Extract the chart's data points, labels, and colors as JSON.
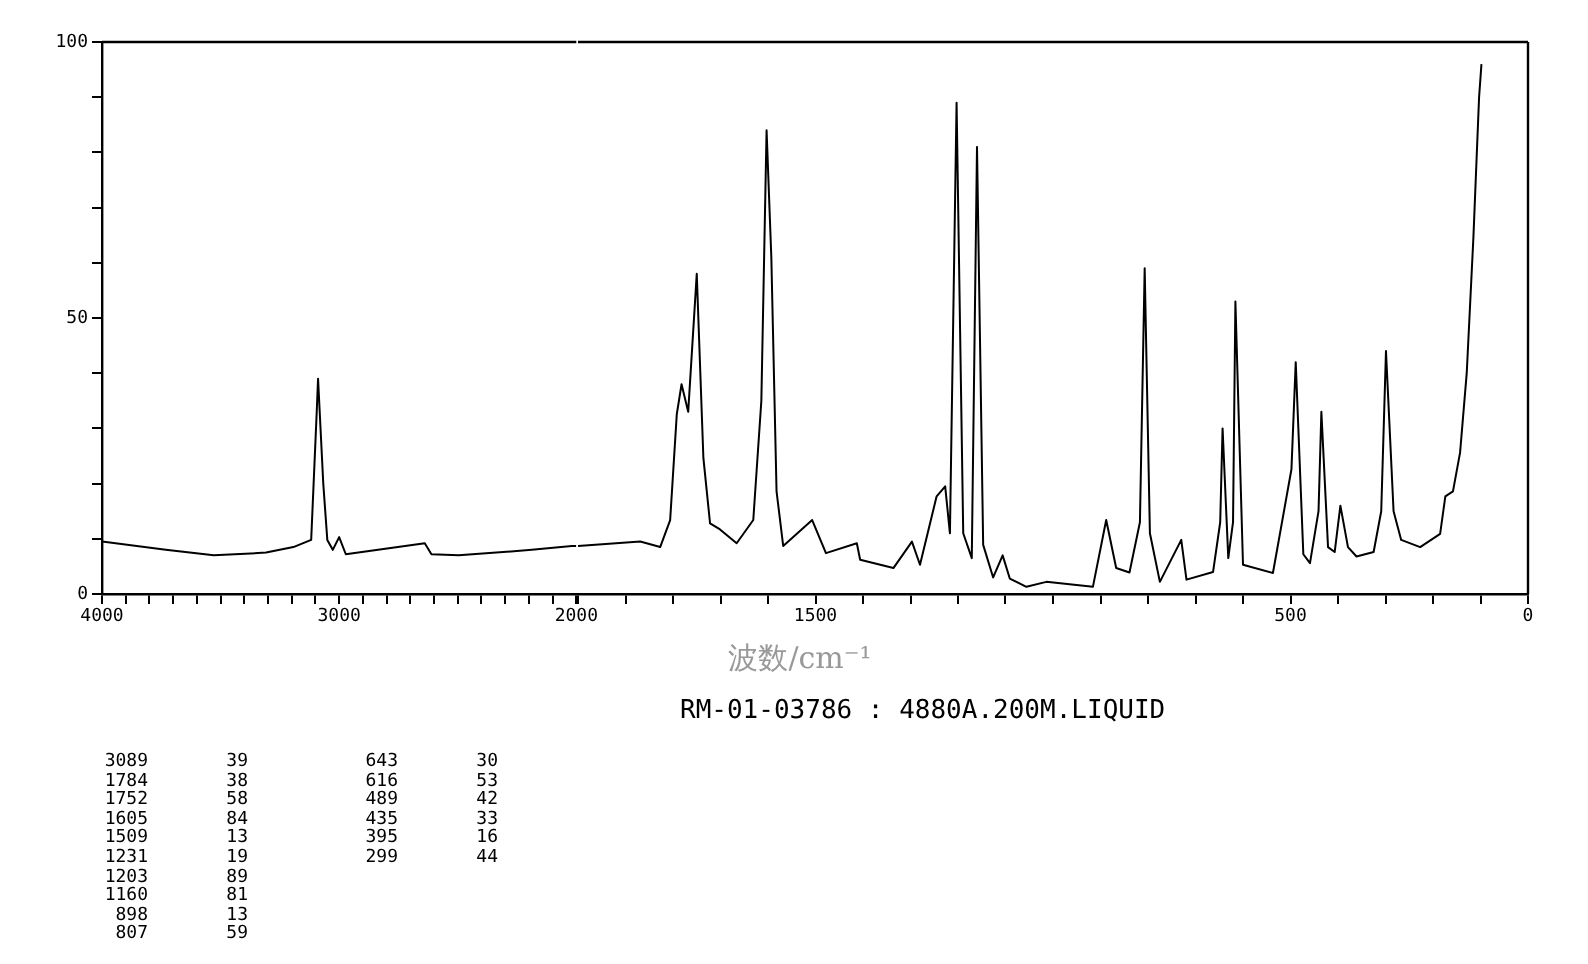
{
  "chart_data": [
    {
      "type": "line",
      "xlim": [
        4000,
        2000
      ],
      "xticks": [
        4000,
        {
          "value": 3900,
          "label": null
        },
        {
          "value": 3800,
          "label": null
        },
        {
          "value": 3700,
          "label": null
        },
        {
          "value": 3600,
          "label": null
        },
        {
          "value": 3500,
          "label": null
        },
        {
          "value": 3400,
          "label": null
        },
        {
          "value": 3300,
          "label": null
        },
        {
          "value": 3200,
          "label": null
        },
        {
          "value": 3100,
          "label": null
        },
        3000,
        {
          "value": 2900,
          "label": null
        },
        {
          "value": 2800,
          "label": null
        },
        {
          "value": 2700,
          "label": null
        },
        {
          "value": 2600,
          "label": null
        },
        {
          "value": 2500,
          "label": null
        },
        {
          "value": 2400,
          "label": null
        },
        {
          "value": 2300,
          "label": null
        },
        {
          "value": 2200,
          "label": null
        },
        {
          "value": 2100,
          "label": null
        },
        2000
      ],
      "ylim": [
        0,
        100
      ],
      "yticks": [
        0,
        {
          "value": 10,
          "label": null
        },
        {
          "value": 20,
          "label": null
        },
        {
          "value": 30,
          "label": null
        },
        {
          "value": 40,
          "label": null
        },
        50,
        {
          "value": 60,
          "label": null
        },
        {
          "value": 70,
          "label": null
        },
        {
          "value": 80,
          "label": null
        },
        {
          "value": 90,
          "label": null
        },
        100
      ],
      "grid": false,
      "legend": false,
      "marker": "none",
      "line_style": "solid",
      "series": [
        {
          "color": "#000000",
          "x": [
            4000,
            3731,
            3529,
            3308,
            3193,
            3118,
            3095,
            3089,
            3067,
            3050,
            3027,
            3000,
            2972,
            2639,
            2611,
            2496,
            2188,
            2019,
            2000
          ],
          "values": [
            9.5,
            8,
            7,
            7.5,
            8.5,
            9.8,
            32.6,
            39,
            20,
            9.8,
            8,
            10.3,
            7.2,
            9.2,
            7.2,
            7,
            8,
            8.7,
            8.7
          ]
        }
      ]
    },
    {
      "type": "line",
      "xlabel": "波数/cm⁻¹",
      "annotations": [
        "RM-01-03786 : 4880A.200M.LIQUID",
        "3089 39",
        "1784 38",
        "1752 58",
        "1605 84",
        "1509 13",
        "1231 19",
        "1203 89",
        "1160 81",
        "898 13",
        "807 59",
        "643 30",
        "616 53",
        "489 42",
        "435 33",
        "395 16",
        "299 44"
      ],
      "xlim": [
        2000,
        0
      ],
      "xticks": [
        {
          "value": 2000,
          "label": null
        },
        {
          "value": 1900,
          "label": null
        },
        {
          "value": 1800,
          "label": null
        },
        {
          "value": 1700,
          "label": null
        },
        {
          "value": 1600,
          "label": null
        },
        1500,
        {
          "value": 1400,
          "label": null
        },
        {
          "value": 1300,
          "label": null
        },
        {
          "value": 1200,
          "label": null
        },
        {
          "value": 1100,
          "label": null
        },
        {
          "value": 1000,
          "label": null
        },
        {
          "value": 900,
          "label": null
        },
        {
          "value": 800,
          "label": null
        },
        {
          "value": 700,
          "label": null
        },
        {
          "value": 600,
          "label": null
        },
        500,
        {
          "value": 400,
          "label": null
        },
        {
          "value": 300,
          "label": null
        },
        {
          "value": 200,
          "label": null
        },
        {
          "value": 100,
          "label": null
        },
        0
      ],
      "ylim": [
        0,
        100
      ],
      "tick_labels": "x",
      "grid": false,
      "legend": false,
      "marker": "none",
      "line_style": "solid",
      "series": [
        {
          "color": "#000000",
          "x": [
            2000,
            1869,
            1827,
            1806,
            1792,
            1782,
            1768,
            1750,
            1736,
            1722,
            1701,
            1666,
            1631,
            1614,
            1603,
            1593,
            1582,
            1568,
            1507,
            1478,
            1413,
            1406,
            1336,
            1297,
            1280,
            1245,
            1227,
            1217,
            1203,
            1189,
            1171,
            1160,
            1147,
            1126,
            1106,
            1091,
            1056,
            1014,
            916,
            888,
            867,
            839,
            817,
            807,
            796,
            775,
            730,
            719,
            663,
            648,
            643,
            631,
            621,
            616,
            600,
            537,
            498,
            489,
            473,
            459,
            441,
            435,
            421,
            407,
            395,
            379,
            361,
            325,
            309,
            299,
            283,
            267,
            227,
            185,
            174,
            158,
            143,
            129,
            115,
            103,
            98
          ],
          "values": [
            8.7,
            9.5,
            8.5,
            13.4,
            32.6,
            38,
            33,
            58,
            24.6,
            12.8,
            11.7,
            9.2,
            13.4,
            35,
            84,
            61,
            18.6,
            8.7,
            13.4,
            7.4,
            9.2,
            6.2,
            4.7,
            9.5,
            5.3,
            17.7,
            19.5,
            11,
            89,
            11,
            6.5,
            81,
            8.9,
            3,
            7,
            2.8,
            1.3,
            2.2,
            1.3,
            13.4,
            4.7,
            3.9,
            13,
            59,
            11,
            2.2,
            9.8,
            2.6,
            4,
            13,
            30,
            6.5,
            13,
            53,
            5.3,
            3.8,
            22.6,
            42,
            7.2,
            5.6,
            15,
            33,
            8.5,
            7.6,
            16,
            8.5,
            6.8,
            7.6,
            15,
            44,
            15,
            9.8,
            8.5,
            10.9,
            17.7,
            18.6,
            25.6,
            40,
            64.5,
            90,
            96
          ]
        }
      ]
    }
  ]
}
